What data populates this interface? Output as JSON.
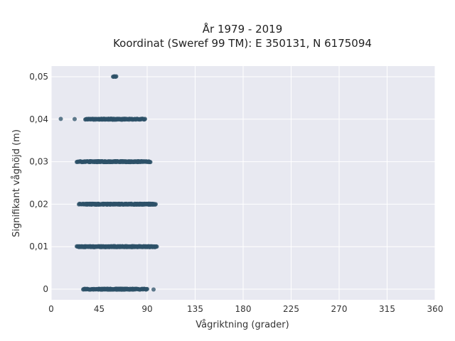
{
  "chart_data": {
    "type": "scatter",
    "title_lines": [
      "År 1979 - 2019",
      "Koordinat (Sweref 99 TM): E 350131, N 6175094"
    ],
    "xlabel": "Vågriktning (grader)",
    "ylabel": "Signifikant våghöjd (m)",
    "xlim": [
      0,
      360
    ],
    "ylim": [
      -0.0025,
      0.0525
    ],
    "x_ticks": [
      0,
      45,
      90,
      135,
      180,
      225,
      270,
      315,
      360
    ],
    "x_tick_labels": [
      "0",
      "45",
      "90",
      "135",
      "180",
      "225",
      "270",
      "315",
      "360"
    ],
    "y_ticks": [
      0,
      0.01,
      0.02,
      0.03,
      0.04,
      0.05
    ],
    "y_tick_labels": [
      "0",
      "0,01",
      "0,02",
      "0,03",
      "0,04",
      "0,05"
    ],
    "grid": true,
    "marker_color": "#2e5168",
    "plot_background": "#e8e9f1",
    "bands": [
      {
        "y": 0.05,
        "x_min": 58,
        "x_max": 61,
        "outliers": []
      },
      {
        "y": 0.04,
        "x_min": 32,
        "x_max": 88,
        "dense_min": 45,
        "dense_max": 72,
        "outliers": [
          9,
          22
        ]
      },
      {
        "y": 0.03,
        "x_min": 24,
        "x_max": 93,
        "dense_min": 36,
        "dense_max": 85,
        "outliers": []
      },
      {
        "y": 0.02,
        "x_min": 26,
        "x_max": 98,
        "dense_min": 32,
        "dense_max": 97,
        "outliers": []
      },
      {
        "y": 0.01,
        "x_min": 24,
        "x_max": 99,
        "dense_min": 26,
        "dense_max": 98,
        "outliers": []
      },
      {
        "y": 0.0,
        "x_min": 30,
        "x_max": 90,
        "dense_min": 44,
        "dense_max": 78,
        "outliers": [
          96
        ]
      }
    ]
  }
}
